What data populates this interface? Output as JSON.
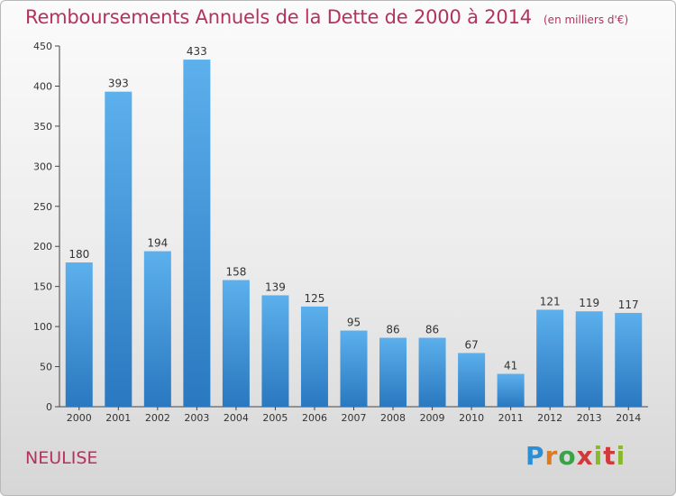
{
  "title": "Remboursements Annuels de la Dette de 2000 à 2014",
  "subtitle": "(en milliers d'€)",
  "commune": "NEULISE",
  "brand": {
    "name": "Proxiti",
    "colors": [
      "#2c8fd6",
      "#e07a1f",
      "#3aa34a",
      "#d13a3a",
      "#8ab82c"
    ]
  },
  "colors": {
    "title": "#b5325f",
    "bar_top": "#5cb0ec",
    "bar_bottom": "#2a78c0"
  },
  "chart_data": {
    "type": "bar",
    "title": "Remboursements Annuels de la Dette de 2000 à 2014",
    "subtitle": "(en milliers d'€)",
    "xlabel": "",
    "ylabel": "",
    "categories": [
      "2000",
      "2001",
      "2002",
      "2003",
      "2004",
      "2005",
      "2006",
      "2007",
      "2008",
      "2009",
      "2010",
      "2011",
      "2012",
      "2013",
      "2014"
    ],
    "values": [
      180,
      393,
      194,
      433,
      158,
      139,
      125,
      95,
      86,
      86,
      67,
      41,
      121,
      119,
      117
    ],
    "ylim": [
      0,
      450
    ],
    "yticks": [
      0,
      50,
      100,
      150,
      200,
      250,
      300,
      350,
      400,
      450
    ],
    "grid": false,
    "legend": "none"
  }
}
